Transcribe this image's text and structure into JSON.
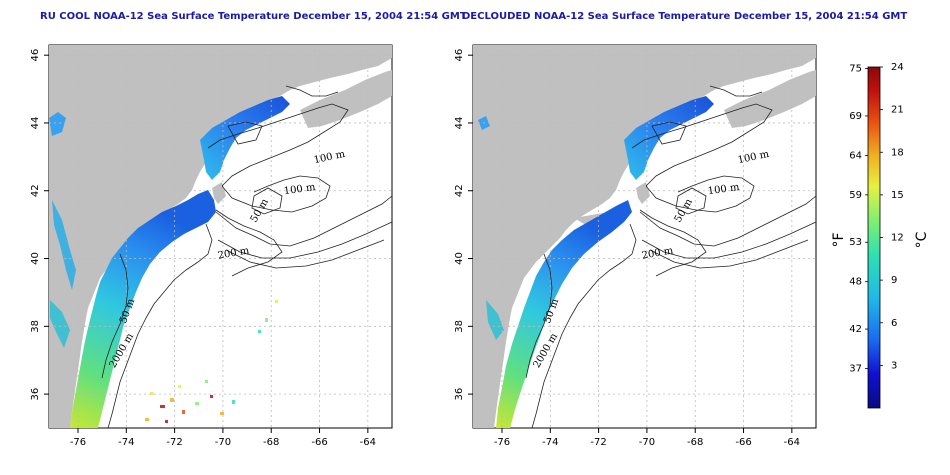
{
  "panels": [
    {
      "title": "RU COOL NOAA-12 Sea Surface Temperature December 15, 2004 21:54 GMT",
      "variant": "raw",
      "contour_labels": [
        "100 m",
        "100 m",
        "50 m",
        "200 m",
        "50 m",
        "2000 m"
      ]
    },
    {
      "title": "DECLOUDED NOAA-12 Sea Surface Temperature December 15, 2004 21:54 GMT",
      "variant": "declouded",
      "contour_labels": [
        "100 m",
        "100 m",
        "50 m",
        "200 m",
        "50 m",
        "2000 m"
      ]
    }
  ],
  "axes": {
    "lon_ticks": [
      "-76",
      "-74",
      "-72",
      "-70",
      "-68",
      "-66",
      "-64"
    ],
    "lat_ticks": [
      "46",
      "44",
      "42",
      "40",
      "38",
      "36"
    ],
    "lon_range": [
      -77.2,
      -63.0
    ],
    "lat_range": [
      35.0,
      46.3
    ],
    "grid": true
  },
  "colorbar": {
    "fahrenheit_label": "°F",
    "celsius_label": "°C",
    "fahrenheit_ticks": [
      "75",
      "69",
      "64",
      "59",
      "53",
      "48",
      "42",
      "37"
    ],
    "celsius_ticks": [
      "24",
      "21",
      "18",
      "15",
      "12",
      "9",
      "6",
      "3"
    ],
    "range_c": [
      0,
      24
    ],
    "colors": [
      "#0a0a80",
      "#1010d0",
      "#1a6af0",
      "#20b8e8",
      "#30e0b0",
      "#80f070",
      "#e8f040",
      "#f0b020",
      "#e85010",
      "#c01010",
      "#8a0a0a"
    ]
  },
  "colors": {
    "land": "#c0c0c0",
    "ocean": "#ffffff",
    "title": "#1a1aa6",
    "grid": "#bbbbbb"
  }
}
